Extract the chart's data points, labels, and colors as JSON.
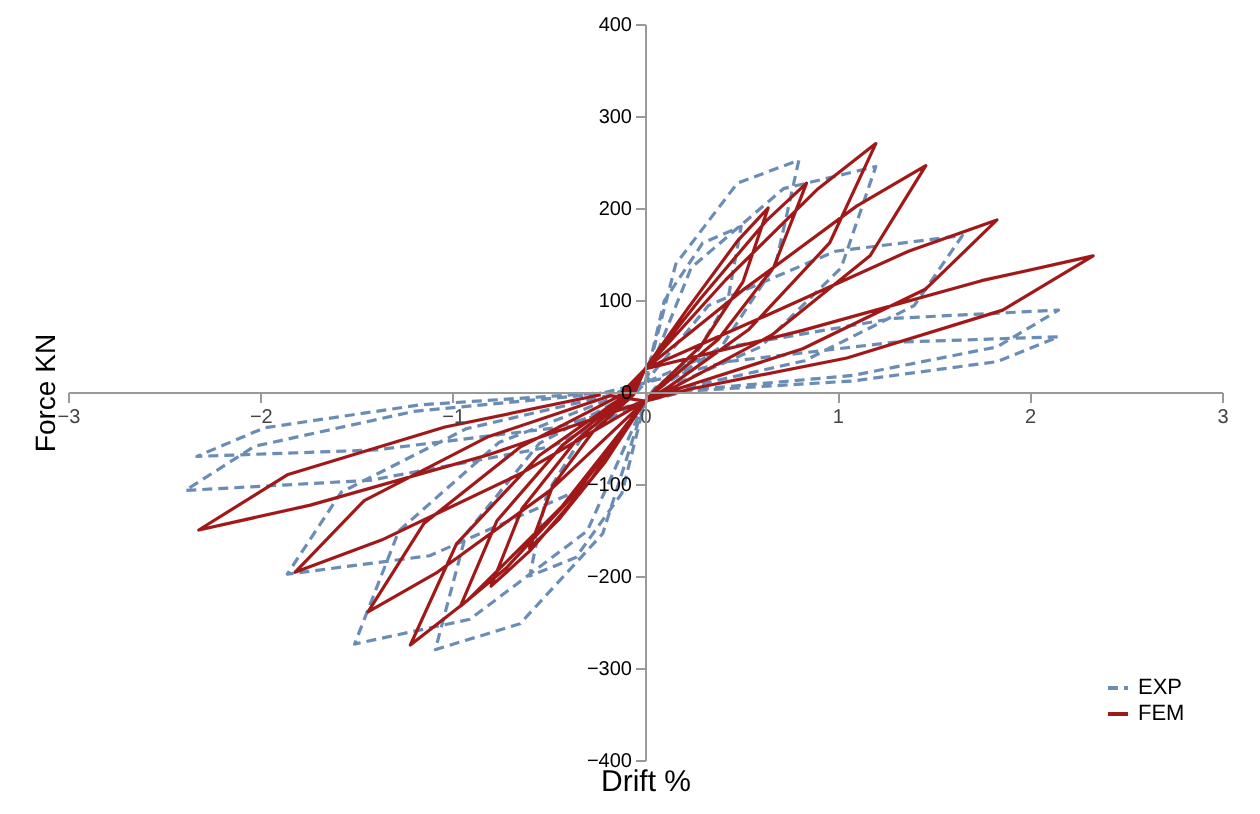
{
  "chart_data": {
    "type": "line",
    "xlabel": "Drift %",
    "ylabel": "Force KN",
    "xlim": [
      -3,
      3
    ],
    "xticks": [
      -3,
      -2,
      -1,
      0,
      1,
      2,
      3
    ],
    "ylim": [
      -400,
      400
    ],
    "yticks": [
      -400,
      -300,
      -200,
      -100,
      0,
      100,
      200,
      300,
      400
    ],
    "grid": false,
    "legend": "bottom right",
    "series": [
      {
        "name": "EXP",
        "color": "#6b8db5",
        "line_style": "dashed",
        "x": [
          0,
          0.1,
          0.3,
          0.5,
          0.43,
          0.25,
          0.05,
          0,
          -0.12,
          -0.36,
          -0.6,
          -0.51,
          -0.3,
          -0.06,
          0,
          0.16,
          0.48,
          0.8,
          0.68,
          0.4,
          0.08,
          0,
          -0.22,
          -0.65,
          -1.09,
          -0.93,
          -0.55,
          -0.11,
          0,
          0.24,
          0.72,
          1.2,
          1.02,
          0.6,
          0.12,
          0,
          -0.3,
          -0.91,
          -1.51,
          -1.28,
          -0.76,
          -0.15,
          0,
          0.33,
          0.99,
          1.65,
          1.4,
          0.83,
          0.17,
          0,
          -0.37,
          -1.12,
          -1.86,
          -1.58,
          -0.93,
          -0.19,
          0,
          0.43,
          1.29,
          2.15,
          1.83,
          1.08,
          0.22,
          0,
          -0.48,
          -1.43,
          -2.39,
          -2.03,
          -1.2,
          -0.24,
          0,
          0.43,
          1.29,
          2.15,
          1.83,
          1.08,
          0.22,
          0,
          -0.47,
          -1.4,
          -2.33,
          -1.98,
          -1.17,
          -0.23
        ],
        "values": [
          10,
          99,
          162,
          180,
          99,
          36,
          4,
          -10,
          -110,
          -180,
          -200,
          -110,
          -40,
          -4,
          10,
          139,
          227,
          252,
          139,
          50,
          5,
          -10,
          -154,
          -252,
          -280,
          -154,
          -56,
          -6,
          10,
          135,
          221,
          245,
          135,
          49,
          5,
          -10,
          -151,
          -247,
          -274,
          -151,
          -55,
          -5,
          10,
          94,
          153,
          170,
          94,
          34,
          3,
          -10,
          -109,
          -178,
          -198,
          -109,
          -40,
          -4,
          10,
          49,
          80,
          89,
          49,
          18,
          2,
          -10,
          -59,
          -96,
          -107,
          -59,
          -21,
          -2,
          10,
          33,
          54,
          60,
          33,
          12,
          1,
          -10,
          -39,
          -63,
          -70,
          -39,
          -14,
          -1
        ]
      },
      {
        "name": "FEM",
        "color": "#a01818",
        "line_style": "solid",
        "x": [
          0,
          0.22,
          0.48,
          0.64,
          0.51,
          0.29,
          0.06,
          0,
          -0.21,
          -0.45,
          -0.6,
          -0.48,
          -0.27,
          -0.06,
          0,
          0.29,
          0.63,
          0.84,
          0.67,
          0.38,
          0.08,
          0,
          -0.28,
          -0.6,
          -0.8,
          -0.64,
          -0.36,
          -0.08,
          0,
          0.42,
          0.9,
          1.2,
          0.96,
          0.54,
          0.12,
          0,
          -0.34,
          -0.72,
          -0.96,
          -0.77,
          -0.43,
          -0.1,
          0,
          0.51,
          1.1,
          1.46,
          1.17,
          0.66,
          0.15,
          0,
          -0.43,
          -0.92,
          -1.22,
          -0.98,
          -0.55,
          -0.12,
          0,
          0.64,
          1.37,
          1.83,
          1.46,
          0.82,
          0.18,
          0,
          -0.5,
          -1.08,
          -1.44,
          -1.15,
          -0.65,
          -0.14,
          0,
          0.82,
          1.75,
          2.33,
          1.86,
          1.05,
          0.23,
          0,
          -0.64,
          -1.37,
          -1.82,
          -1.46,
          -0.82,
          -0.18,
          0,
          -0.81,
          -1.74,
          -2.32,
          -1.86,
          -1.04,
          -0.23
        ],
        "values": [
          25,
          90,
          164,
          200,
          120,
          50,
          4,
          -10,
          -77,
          -139,
          -170,
          -102,
          -43,
          -3,
          25,
          102,
          186,
          227,
          136,
          57,
          5,
          -10,
          -95,
          -173,
          -211,
          -127,
          -53,
          -4,
          25,
          122,
          221,
          270,
          162,
          68,
          5,
          -10,
          -105,
          -191,
          -233,
          -140,
          -58,
          -5,
          25,
          111,
          202,
          246,
          148,
          62,
          5,
          -10,
          -124,
          -226,
          -275,
          -165,
          -69,
          -6,
          25,
          84,
          153,
          187,
          112,
          47,
          4,
          -10,
          -108,
          -196,
          -239,
          -143,
          -60,
          -5,
          25,
          67,
          121,
          148,
          89,
          37,
          3,
          -10,
          -88,
          -161,
          -196,
          -118,
          -49,
          -4,
          -10,
          -68,
          -123,
          -150,
          -90,
          -38,
          -3
        ]
      }
    ]
  }
}
